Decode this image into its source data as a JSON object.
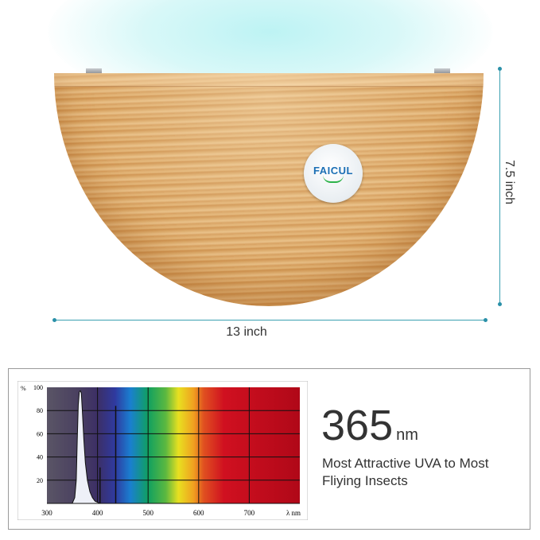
{
  "logo": {
    "text": "FAICUL"
  },
  "dimensions": {
    "height_label": "7.5 inch",
    "width_label": "13 inch"
  },
  "spec": {
    "value": "365",
    "unit": "nm",
    "line1": "Most Attractive UVA to Most",
    "line2": "Fliying Insects"
  },
  "colors": {
    "dimension_line": "#3aa0b0",
    "wood": "#dcaa6a",
    "logo_blue": "#1b6fb5"
  },
  "chart_data": {
    "type": "line",
    "ylabel": "%",
    "xlabel": "λ nm",
    "xlim": [
      300,
      800
    ],
    "ylim": [
      0,
      100
    ],
    "x_ticks": [
      "300",
      "400",
      "500",
      "600",
      "700"
    ],
    "y_ticks": [
      "100",
      "80",
      "60",
      "40",
      "20"
    ],
    "grid": true,
    "series": [
      {
        "x": [
          350,
          355,
          358,
          360,
          362,
          364,
          366,
          368,
          370,
          373,
          376,
          380,
          385,
          390,
          395,
          400,
          405
        ],
        "y": [
          0,
          5,
          20,
          55,
          85,
          96,
          97,
          95,
          80,
          55,
          35,
          20,
          10,
          5,
          2,
          1,
          0
        ]
      }
    ],
    "lines": [
      {
        "x": 405,
        "y": 31
      },
      {
        "x": 436,
        "y": 84
      }
    ]
  }
}
